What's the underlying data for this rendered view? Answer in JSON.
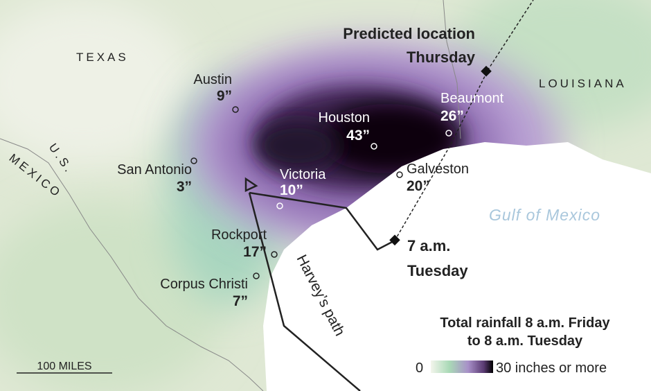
{
  "regions": {
    "texas": "TEXAS",
    "louisiana": "LOUISIANA",
    "mexico": "MEXICO",
    "us": "U.S.",
    "gulf": "Gulf of Mexico"
  },
  "cities": [
    {
      "name": "Austin",
      "rain": "9”"
    },
    {
      "name": "San Antonio",
      "rain": "3”"
    },
    {
      "name": "Houston",
      "rain": "43”"
    },
    {
      "name": "Beaumont",
      "rain": "26”"
    },
    {
      "name": "Victoria",
      "rain": "10”"
    },
    {
      "name": "Galveston",
      "rain": "20”"
    },
    {
      "name": "Rockport",
      "rain": "17”"
    },
    {
      "name": "Corpus Christi",
      "rain": "7”"
    }
  ],
  "annotations": {
    "predicted": "Predicted location",
    "predicted_day": "Thursday",
    "tuesday_time": "7 a.m.",
    "tuesday_day": "Tuesday",
    "path": "Harvey’s path"
  },
  "legend": {
    "title_line1": "Total rainfall 8 a.m. Friday",
    "title_line2": "to 8 a.m. Tuesday",
    "min": "0",
    "max": "30 inches or more"
  },
  "scale": "100 MILES"
}
